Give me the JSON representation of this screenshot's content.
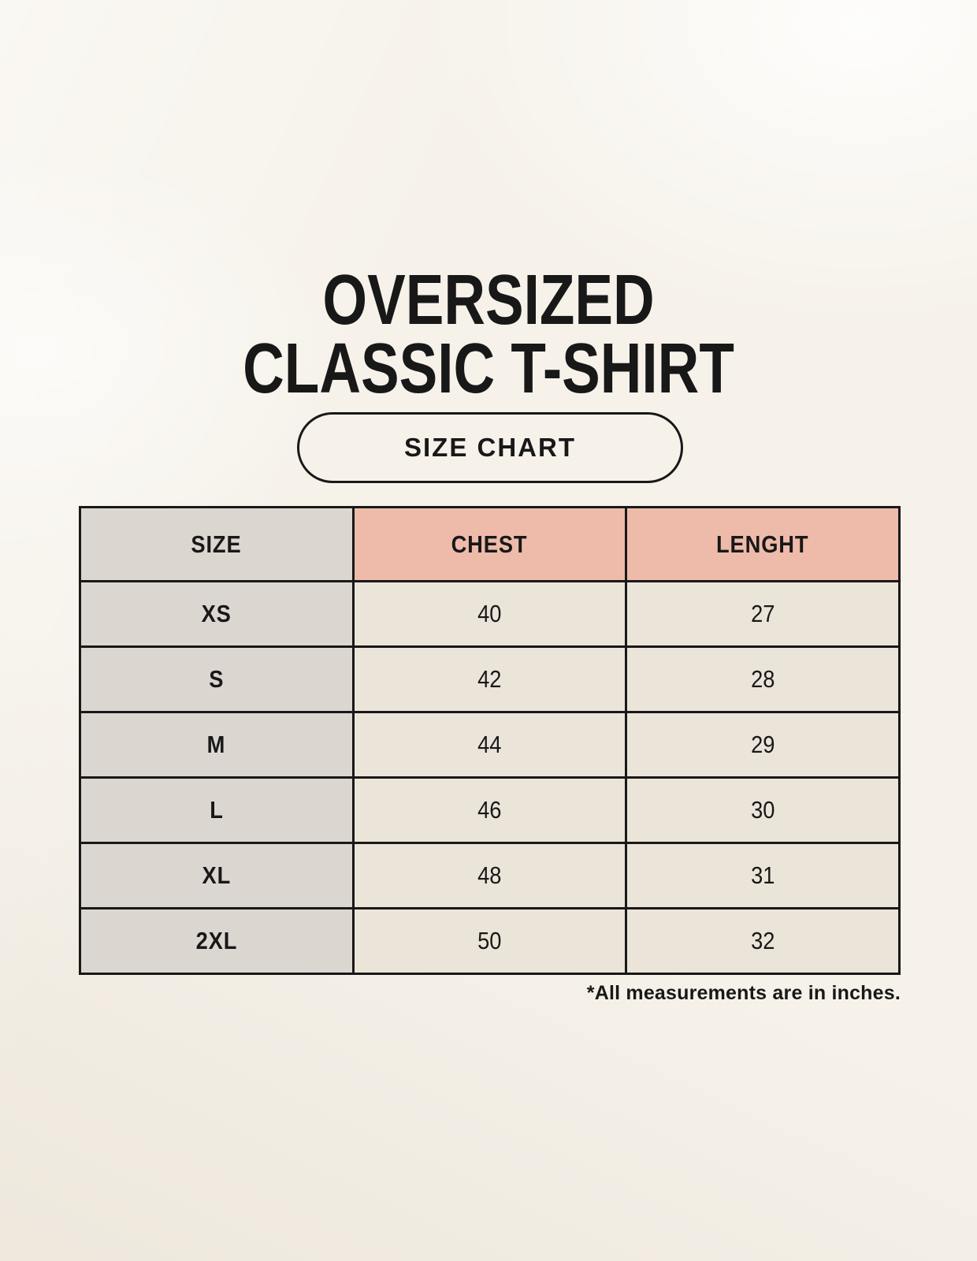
{
  "header": {
    "title_line1": "OVERSIZED",
    "title_line2": "CLASSIC T-SHIRT",
    "badge_label": "SIZE CHART"
  },
  "table": {
    "columns": [
      "SIZE",
      "CHEST",
      "LENGHT"
    ],
    "rows": [
      {
        "size": "XS",
        "chest": "40",
        "length": "27"
      },
      {
        "size": "S",
        "chest": "42",
        "length": "28"
      },
      {
        "size": "M",
        "chest": "44",
        "length": "29"
      },
      {
        "size": "L",
        "chest": "46",
        "length": "30"
      },
      {
        "size": "XL",
        "chest": "48",
        "length": "31"
      },
      {
        "size": "2XL",
        "chest": "50",
        "length": "32"
      }
    ],
    "footnote": "*All measurements are in inches."
  },
  "colors": {
    "background": "#f6f2ea",
    "header_accent": "#eebbaa",
    "size_column_bg": "#dcd6d1",
    "cell_bg": "#ebe4d8",
    "border": "#181818",
    "text": "#181818"
  }
}
